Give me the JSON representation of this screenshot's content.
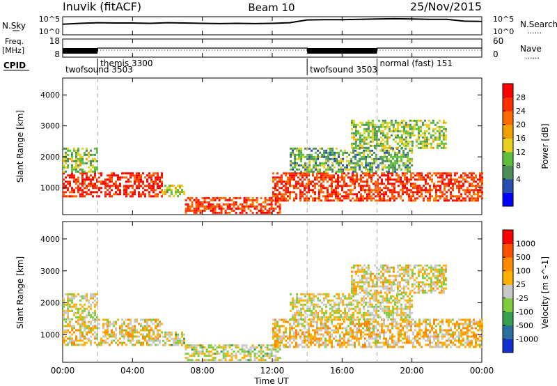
{
  "header": {
    "station": "Inuvik (fitACF)",
    "beam": "Beam 10",
    "date": "25/Nov/2015"
  },
  "left_labels": {
    "nsky": "N.Sky",
    "freq_line1": "Freq.",
    "freq_line2": "[MHz]",
    "cpid": "CPID"
  },
  "right_labels": {
    "nsearch": "N.Search",
    "nave": "Nave",
    "dots": "......"
  },
  "cpid_segments": [
    {
      "label": "twofsound 3503",
      "start_hour": 0.0
    },
    {
      "label": "themis 3300",
      "start_hour": 2.0
    },
    {
      "label": "twofsound 3503",
      "start_hour": 14.0
    },
    {
      "label": "normal (fast) 151",
      "start_hour": 18.0
    }
  ],
  "axes": {
    "time_ticks": [
      "00:00",
      "04:00",
      "08:00",
      "12:00",
      "16:00",
      "20:00",
      "00:00"
    ],
    "time_title": "Time UT",
    "range_title": "Slant Range [km]",
    "range_ticks": [
      "1000",
      "2000",
      "3000",
      "4000"
    ],
    "nsky_left_ticks": [
      "10^5",
      "10^0"
    ],
    "nsky_right_ticks": [
      "10^5",
      "10^0"
    ],
    "freq_left_ticks": [
      "18",
      "8"
    ],
    "nave_right_ticks": [
      "60",
      "0"
    ]
  },
  "power_scale": {
    "title": "Power [dB]",
    "ticks": [
      "28",
      "24",
      "20",
      "16",
      "12",
      "8",
      "4"
    ],
    "colors": [
      "#0000ff",
      "#2b4fb0",
      "#4a8f5a",
      "#5fbf3a",
      "#e8d020",
      "#f0a000",
      "#ff6a00",
      "#ff3000",
      "#ff0000"
    ]
  },
  "velocity_scale": {
    "title": "Velocity [m s^-1]",
    "ticks": [
      "1000",
      "500",
      "100",
      "25",
      "-25",
      "-100",
      "-500",
      "-1000"
    ],
    "colors": [
      "#ff0000",
      "#ff5000",
      "#ff8c00",
      "#ffb000",
      "#c8c8c8",
      "#80cc40",
      "#3aa050",
      "#2a6fa0",
      "#1030d0"
    ]
  },
  "chart_data": [
    {
      "type": "line",
      "name": "N.Sky / N.Search",
      "x_hours": [
        0,
        1,
        2,
        3,
        4,
        5,
        6,
        7,
        8,
        9,
        10,
        11,
        12,
        13,
        14,
        15,
        16,
        17,
        18,
        19,
        20,
        21,
        22,
        23,
        24
      ],
      "nsky_log10": [
        3.0,
        3.3,
        3.5,
        3.4,
        3.4,
        3.3,
        3.5,
        3.4,
        3.3,
        3.2,
        3.3,
        3.2,
        3.3,
        3.5,
        4.4,
        4.5,
        4.5,
        4.6,
        4.7,
        4.8,
        4.7,
        4.6,
        4.6,
        4.0,
        3.9
      ],
      "ylim": [
        0,
        5
      ]
    },
    {
      "type": "line",
      "name": "Freq / Nave",
      "x_hours": [
        0,
        2,
        2.01,
        14,
        14.01,
        18,
        18.01,
        24
      ],
      "freq_mhz": [
        11,
        11,
        13,
        13,
        11,
        11,
        13,
        13
      ],
      "ylim": [
        8,
        18
      ]
    },
    {
      "type": "heatmap",
      "title": "Power [dB]",
      "xlabel": "Time UT",
      "ylabel": "Slant Range [km]",
      "xlim": [
        0,
        24
      ],
      "ylim": [
        180,
        4500
      ],
      "clim": [
        0,
        30
      ],
      "features": [
        {
          "t_start": 0.0,
          "t_end": 5.7,
          "range_low": 700,
          "range_high": 1500,
          "power_db": 28
        },
        {
          "t_start": 0.0,
          "t_end": 2.0,
          "range_low": 1500,
          "range_high": 2300,
          "power_db": 12
        },
        {
          "t_start": 5.7,
          "t_end": 7.0,
          "range_low": 700,
          "range_high": 1100,
          "power_db": 14
        },
        {
          "t_start": 7.0,
          "t_end": 12.5,
          "range_low": 180,
          "range_high": 700,
          "power_db": 26
        },
        {
          "t_start": 12.0,
          "t_end": 24.0,
          "range_low": 600,
          "range_high": 1500,
          "power_db": 26
        },
        {
          "t_start": 13.0,
          "t_end": 20.0,
          "range_low": 1500,
          "range_high": 2300,
          "power_db": 10
        },
        {
          "t_start": 16.5,
          "t_end": 22.0,
          "range_low": 2300,
          "range_high": 3200,
          "power_db": 12
        }
      ]
    },
    {
      "type": "heatmap",
      "title": "Velocity [m s^-1]",
      "xlabel": "Time UT",
      "ylabel": "Slant Range [km]",
      "xlim": [
        0,
        24
      ],
      "ylim": [
        180,
        4500
      ],
      "clim": [
        -1000,
        1000
      ],
      "features": [
        {
          "t_start": 0.0,
          "t_end": 5.7,
          "range_low": 700,
          "range_high": 1500,
          "velocity": -150
        },
        {
          "t_start": 0.0,
          "t_end": 2.0,
          "range_low": 1500,
          "range_high": 2300,
          "velocity": 0
        },
        {
          "t_start": 5.7,
          "t_end": 7.0,
          "range_low": 700,
          "range_high": 1100,
          "velocity": 60
        },
        {
          "t_start": 7.0,
          "t_end": 12.5,
          "range_low": 180,
          "range_high": 700,
          "velocity": 40
        },
        {
          "t_start": 12.0,
          "t_end": 24.0,
          "range_low": 600,
          "range_high": 1500,
          "velocity": -200
        },
        {
          "t_start": 13.0,
          "t_end": 20.0,
          "range_low": 1500,
          "range_high": 2300,
          "velocity": 0
        },
        {
          "t_start": 16.5,
          "t_end": 22.0,
          "range_low": 2300,
          "range_high": 3200,
          "velocity": -100
        }
      ]
    }
  ]
}
